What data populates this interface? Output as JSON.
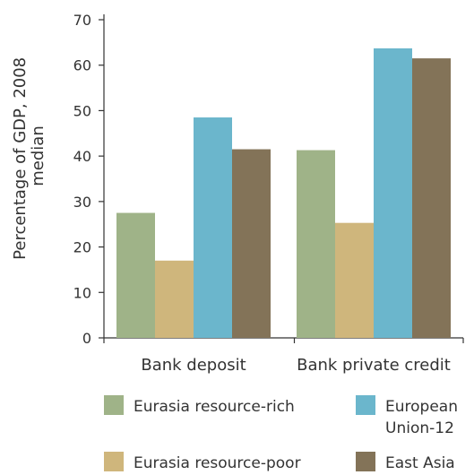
{
  "chart_data": {
    "type": "bar",
    "title": "",
    "xlabel": "",
    "ylabel": [
      "Percentage of GDP, 2008",
      "median"
    ],
    "ylim": [
      0,
      70
    ],
    "yticks": [
      0,
      10,
      20,
      30,
      40,
      50,
      60,
      70
    ],
    "grid": false,
    "legend_placement": "bottom",
    "categories": [
      "Bank deposit",
      "Bank private credit"
    ],
    "series": [
      {
        "name": "Eurasia resource-rich",
        "color": "#9fb388",
        "values": [
          27.5,
          41.3
        ]
      },
      {
        "name": "Eurasia resource-poor",
        "color": "#cfb67c",
        "values": [
          17.0,
          25.3
        ]
      },
      {
        "name": "European Union-12",
        "legend_lines": [
          "European",
          "Union-12"
        ],
        "color": "#6bb6cc",
        "values": [
          48.5,
          63.7
        ]
      },
      {
        "name": "East Asia",
        "color": "#837358",
        "values": [
          41.5,
          61.5
        ]
      }
    ]
  }
}
